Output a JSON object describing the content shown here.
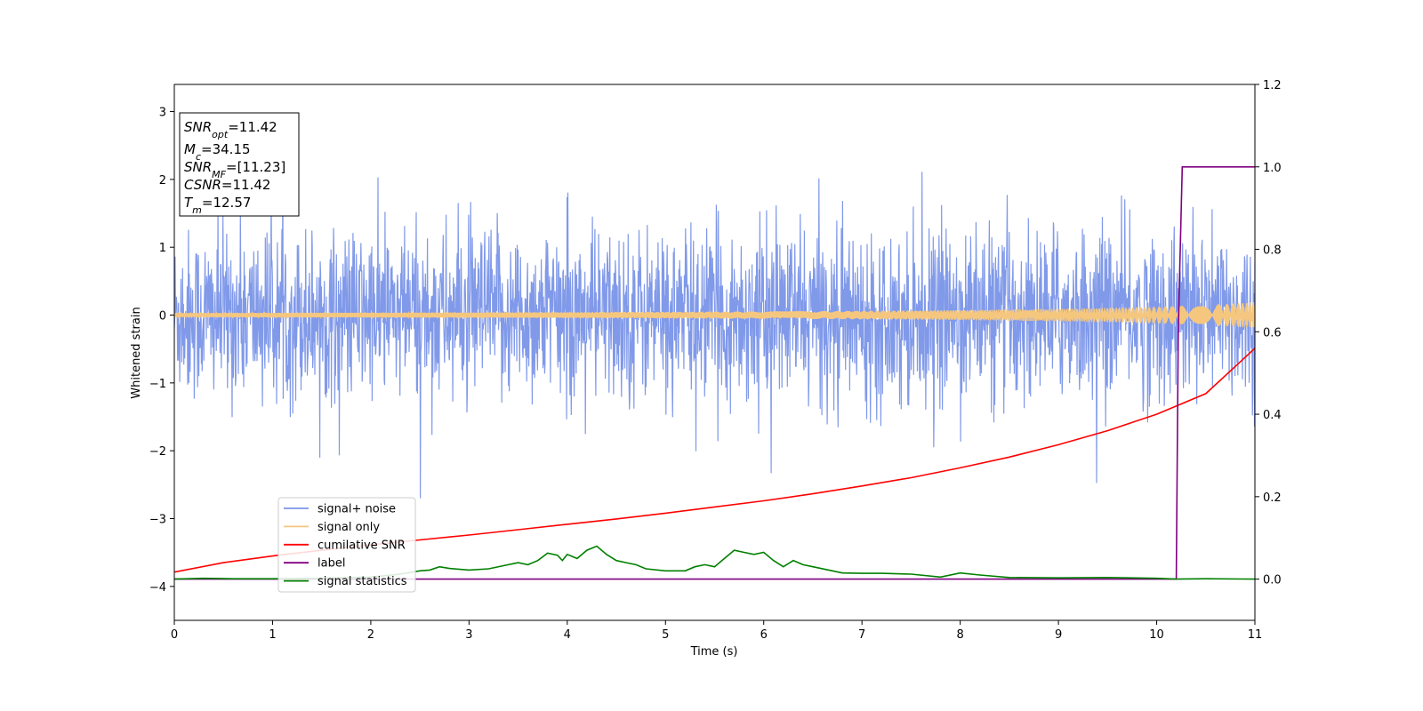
{
  "chart_data": {
    "type": "line",
    "xlabel": "Time (s)",
    "ylabel": "Whitened strain",
    "y2label": "",
    "xlim": [
      0,
      11
    ],
    "ylim": [
      -4.5,
      3.4
    ],
    "y2lim": [
      -0.1,
      1.2
    ],
    "x_ticks": [
      "0",
      "1",
      "2",
      "3",
      "4",
      "5",
      "6",
      "7",
      "8",
      "9",
      "10",
      "11"
    ],
    "y_ticks": [
      "3",
      "2",
      "1",
      "0",
      "−1",
      "−2",
      "−3",
      "−4"
    ],
    "y2_ticks": [
      "1.2",
      "1.0",
      "0.8",
      "0.6",
      "0.4",
      "0.2",
      "0.0"
    ],
    "legend_placement": "lower-left",
    "legend": [
      {
        "name": "signal+ noise",
        "color": "#7994e8"
      },
      {
        "name": "signal only",
        "color": "#f5c77e"
      },
      {
        "name": "cumilative SNR",
        "color": "#ff0000"
      },
      {
        "name": "label",
        "color": "#800080"
      },
      {
        "name": "signal statistics",
        "color": "#008000"
      }
    ],
    "info_box": [
      {
        "base": "SNR",
        "sub": "opt",
        "rest": "=11.42"
      },
      {
        "base": "M",
        "sub": "c",
        "rest": "=34.15"
      },
      {
        "base": "SNR",
        "sub": "MF",
        "rest": "=[11.23]"
      },
      {
        "base": "CSNR",
        "sub": "",
        "rest": "=11.42"
      },
      {
        "base": "T",
        "sub": "m",
        "rest": "=12.57"
      }
    ],
    "series": [
      {
        "name": "cumilative SNR",
        "axis": "right",
        "x": [
          0,
          0.5,
          1,
          1.5,
          2,
          2.5,
          3,
          3.5,
          4,
          4.5,
          5,
          5.5,
          6,
          6.5,
          7,
          7.5,
          8,
          8.5,
          9,
          9.5,
          10,
          10.5,
          11
        ],
        "y": [
          0.017,
          0.04,
          0.056,
          0.07,
          0.083,
          0.095,
          0.107,
          0.12,
          0.133,
          0.146,
          0.16,
          0.175,
          0.19,
          0.207,
          0.226,
          0.246,
          0.27,
          0.296,
          0.326,
          0.36,
          0.4,
          0.45,
          0.56
        ]
      },
      {
        "name": "label",
        "axis": "right",
        "x": [
          0,
          10.19,
          10.2,
          10.22,
          10.26,
          11
        ],
        "y": [
          0.0,
          0.0,
          0.0,
          0.6,
          1.0,
          1.0
        ]
      },
      {
        "name": "signal statistics",
        "axis": "right",
        "x": [
          0,
          0.3,
          0.6,
          1,
          1.5,
          2,
          2.3,
          2.5,
          2.6,
          2.7,
          2.8,
          3,
          3.2,
          3.4,
          3.5,
          3.6,
          3.7,
          3.8,
          3.9,
          3.95,
          4,
          4.1,
          4.2,
          4.3,
          4.4,
          4.5,
          4.6,
          4.7,
          4.8,
          5,
          5.2,
          5.3,
          5.4,
          5.5,
          5.6,
          5.7,
          5.8,
          5.9,
          6,
          6.1,
          6.2,
          6.3,
          6.4,
          6.5,
          6.7,
          6.8,
          7,
          7.2,
          7.5,
          7.8,
          8,
          8.2,
          8.5,
          9,
          9.5,
          10,
          10.2,
          10.5,
          11
        ],
        "y": [
          0.0,
          0.002,
          0.001,
          0.001,
          0.002,
          0.005,
          0.012,
          0.02,
          0.022,
          0.03,
          0.026,
          0.022,
          0.025,
          0.035,
          0.04,
          0.035,
          0.045,
          0.063,
          0.058,
          0.045,
          0.06,
          0.05,
          0.07,
          0.08,
          0.06,
          0.045,
          0.04,
          0.035,
          0.025,
          0.02,
          0.02,
          0.03,
          0.035,
          0.03,
          0.05,
          0.07,
          0.065,
          0.06,
          0.065,
          0.045,
          0.03,
          0.045,
          0.035,
          0.03,
          0.02,
          0.015,
          0.014,
          0.014,
          0.012,
          0.005,
          0.015,
          0.01,
          0.004,
          0.003,
          0.004,
          0.002,
          0.0,
          0.001,
          0.0
        ]
      }
    ]
  }
}
